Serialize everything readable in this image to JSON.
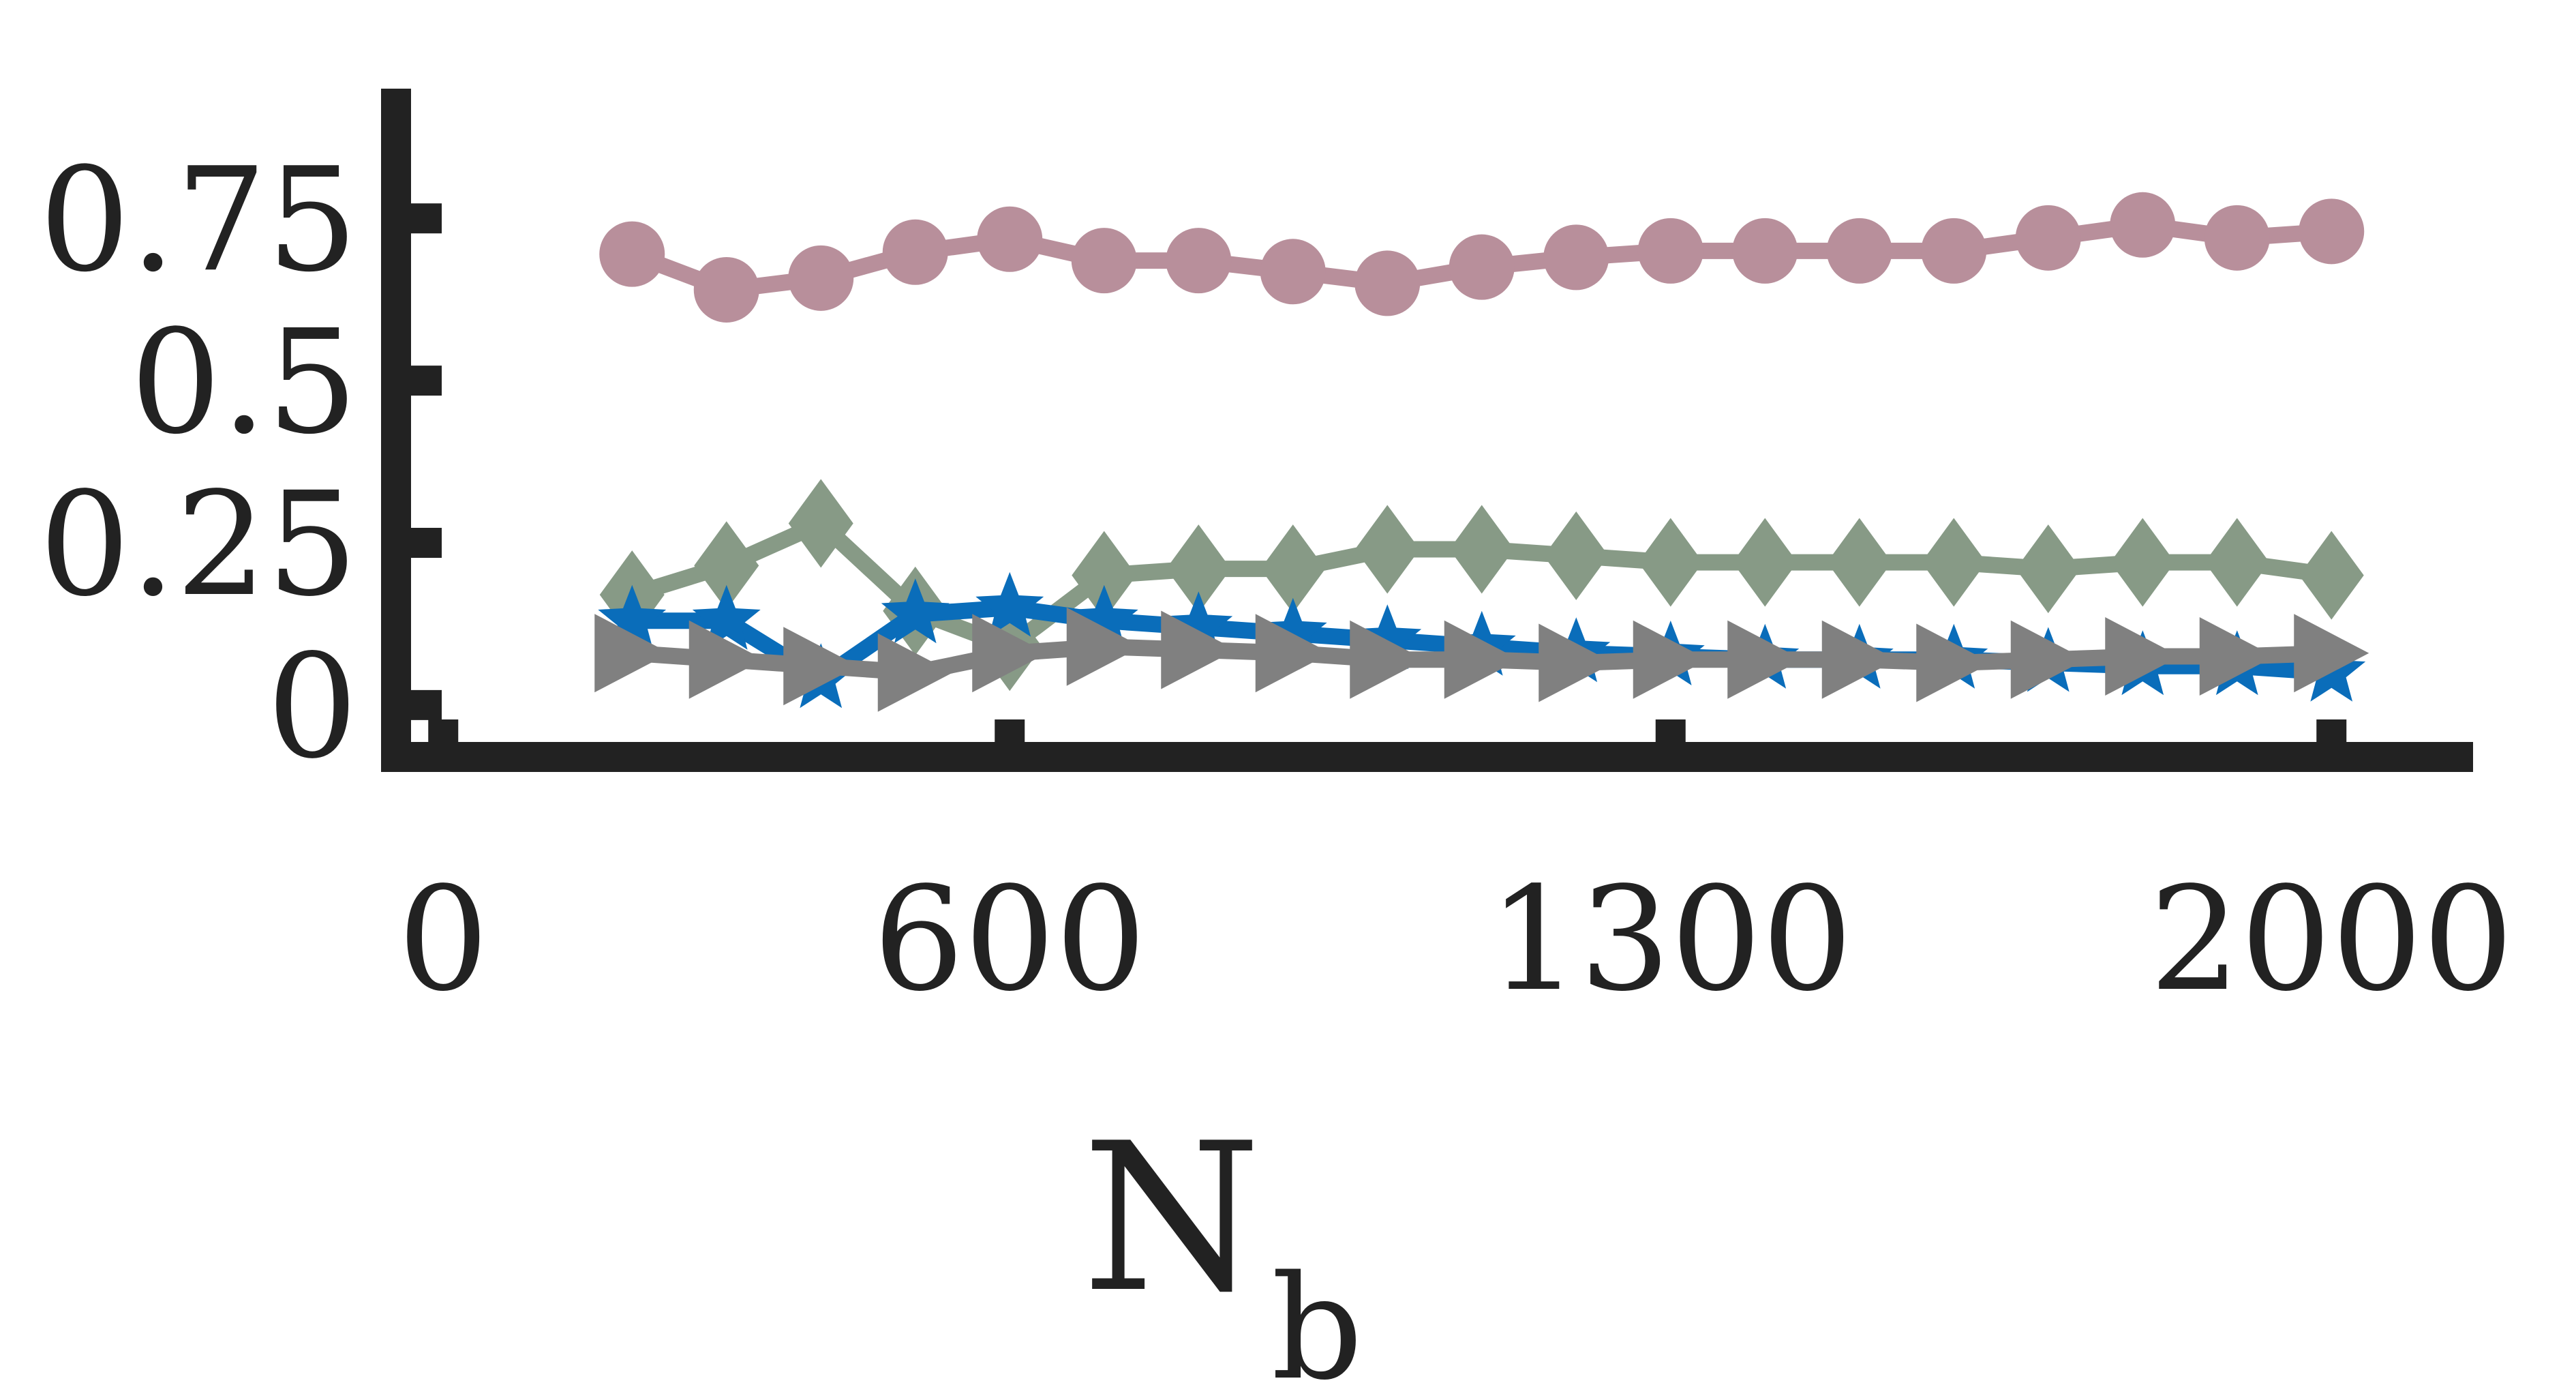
{
  "chart_data": {
    "type": "line",
    "title": "",
    "xlabel": "N",
    "xlabel_subscript": "b",
    "ylabel": "",
    "xlim": [
      -50,
      2150
    ],
    "ylim": [
      -0.08,
      0.95
    ],
    "xticks": [
      0,
      600,
      1300,
      2000
    ],
    "xtick_labels": [
      "0",
      "600",
      "1300",
      "2000"
    ],
    "yticks": [
      0,
      0.25,
      0.5,
      0.75
    ],
    "ytick_labels": [
      "0",
      "0.25",
      "0.5",
      "0.75"
    ],
    "grid": false,
    "x": [
      200,
      300,
      400,
      500,
      600,
      700,
      800,
      900,
      1000,
      1100,
      1200,
      1300,
      1400,
      1500,
      1600,
      1700,
      1800,
      1900,
      2000
    ],
    "series": [
      {
        "color": "#b88f9b",
        "marker": "circle",
        "values": [
          0.695,
          0.64,
          0.658,
          0.698,
          0.718,
          0.685,
          0.685,
          0.668,
          0.65,
          0.675,
          0.69,
          0.7,
          0.7,
          0.7,
          0.7,
          0.72,
          0.74,
          0.72,
          0.73
        ]
      },
      {
        "color": "#879a86",
        "marker": "diamond",
        "values": [
          0.17,
          0.215,
          0.28,
          0.145,
          0.09,
          0.2,
          0.21,
          0.21,
          0.24,
          0.24,
          0.23,
          0.22,
          0.22,
          0.22,
          0.22,
          0.21,
          0.22,
          0.22,
          0.2
        ]
      },
      {
        "color": "#0a6dba",
        "marker": "star",
        "values": [
          0.13,
          0.13,
          0.04,
          0.14,
          0.15,
          0.13,
          0.12,
          0.11,
          0.1,
          0.09,
          0.08,
          0.075,
          0.07,
          0.07,
          0.07,
          0.065,
          0.06,
          0.06,
          0.05
        ]
      },
      {
        "color": "#808080",
        "marker": "triangle-right",
        "values": [
          0.08,
          0.07,
          0.06,
          0.05,
          0.08,
          0.09,
          0.085,
          0.08,
          0.07,
          0.07,
          0.065,
          0.07,
          0.07,
          0.07,
          0.065,
          0.07,
          0.075,
          0.075,
          0.08
        ]
      }
    ]
  }
}
